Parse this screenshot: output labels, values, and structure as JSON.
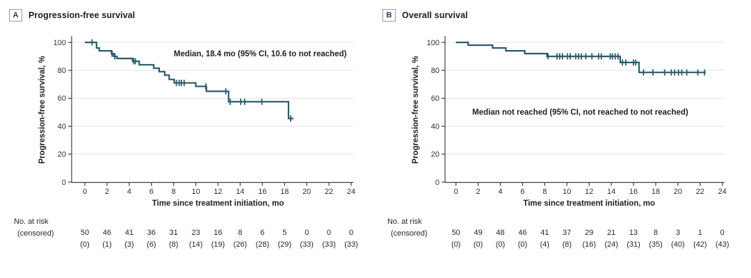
{
  "style": {
    "curve_color": "#2b5a6c",
    "grid_color": "#e4e4e4",
    "axis_color": "#3f3f3f",
    "tick_text_color": "#2e2e2e",
    "risk_text_color": "#262626",
    "annotation_color": "#1f1f1f",
    "panel_letter_color": "#1c3e63",
    "panel_label_box_border": "#9b9b9b",
    "background": "#ffffff"
  },
  "chart_data": [
    {
      "type": "line",
      "subtype": "kaplan-meier-step",
      "panel_label": "A",
      "title": "Progression-free survival",
      "annotation": "Median, 18.4 mo (95% CI, 10.6 to not reached)",
      "annotation_pos": {
        "t": 15.8,
        "s": 90
      },
      "xlabel": "Time since treatment initiation, mo",
      "ylabel": "Progression-free survival, %",
      "xlim": [
        0,
        24
      ],
      "ylim": [
        0,
        100
      ],
      "xticks": [
        0,
        2,
        4,
        6,
        8,
        10,
        12,
        14,
        16,
        18,
        20,
        22,
        24
      ],
      "yticks": [
        0,
        20,
        40,
        60,
        80,
        100
      ],
      "grid": "horizontal",
      "legend": "none",
      "steps": [
        [
          0,
          100
        ],
        [
          1.05,
          96
        ],
        [
          1.3,
          94
        ],
        [
          2.4,
          92
        ],
        [
          2.6,
          90
        ],
        [
          2.9,
          88.5
        ],
        [
          4.3,
          86.5
        ],
        [
          4.9,
          84
        ],
        [
          6.2,
          81.5
        ],
        [
          6.7,
          79
        ],
        [
          7.2,
          76.5
        ],
        [
          7.6,
          73.5
        ],
        [
          8.05,
          71
        ],
        [
          10.0,
          68.5
        ],
        [
          10.95,
          65
        ],
        [
          12.95,
          57.5
        ],
        [
          18.35,
          45.5
        ]
      ],
      "end_time": 18.8,
      "censor_marks": [
        [
          0.65,
          100
        ],
        [
          2.45,
          92
        ],
        [
          2.7,
          90
        ],
        [
          4.4,
          86.5
        ],
        [
          4.55,
          86.5
        ],
        [
          8.25,
          71
        ],
        [
          8.5,
          71
        ],
        [
          8.7,
          71
        ],
        [
          8.95,
          71
        ],
        [
          10.9,
          68.5
        ],
        [
          12.7,
          65
        ],
        [
          13.1,
          57.5
        ],
        [
          14.05,
          57.5
        ],
        [
          14.4,
          57.5
        ],
        [
          15.95,
          57.5
        ],
        [
          18.55,
          45.5
        ]
      ],
      "risk_table": {
        "label_line1": "No. at risk",
        "label_line2": "(censored)",
        "times": [
          0,
          2,
          4,
          6,
          8,
          10,
          12,
          14,
          16,
          18,
          20,
          22,
          24
        ],
        "at_risk": [
          50,
          46,
          41,
          36,
          31,
          23,
          16,
          8,
          6,
          5,
          0,
          0,
          0
        ],
        "censored": [
          0,
          1,
          3,
          6,
          8,
          14,
          19,
          26,
          28,
          29,
          33,
          33,
          33
        ]
      }
    },
    {
      "type": "line",
      "subtype": "kaplan-meier-step",
      "panel_label": "B",
      "title": "Overall survival",
      "annotation": "Median not reached (95% CI, not reached to not reached)",
      "annotation_pos": {
        "t": 11.2,
        "s": 48.3
      },
      "xlabel": "Time since treatment initiation, mo",
      "ylabel": "Progression-free survival, %",
      "xlim": [
        0,
        24
      ],
      "ylim": [
        0,
        100
      ],
      "xticks": [
        0,
        2,
        4,
        6,
        8,
        10,
        12,
        14,
        16,
        18,
        20,
        22,
        24
      ],
      "yticks": [
        0,
        20,
        40,
        60,
        80,
        100
      ],
      "grid": "horizontal",
      "legend": "none",
      "steps": [
        [
          0,
          100
        ],
        [
          1.1,
          98
        ],
        [
          3.3,
          96
        ],
        [
          4.5,
          94
        ],
        [
          6.2,
          92
        ],
        [
          8.2,
          90
        ],
        [
          14.8,
          85.6
        ],
        [
          16.5,
          78.5
        ]
      ],
      "end_time": 22.5,
      "censor_marks": [
        [
          8.3,
          90
        ],
        [
          9.1,
          90
        ],
        [
          9.35,
          90
        ],
        [
          9.6,
          90
        ],
        [
          10.05,
          90
        ],
        [
          10.3,
          90
        ],
        [
          10.8,
          90
        ],
        [
          11.05,
          90
        ],
        [
          11.3,
          90
        ],
        [
          11.7,
          90
        ],
        [
          12.25,
          90
        ],
        [
          12.85,
          90
        ],
        [
          13.1,
          90
        ],
        [
          13.9,
          90
        ],
        [
          14.1,
          90
        ],
        [
          14.35,
          90
        ],
        [
          14.6,
          90
        ],
        [
          15.0,
          85.6
        ],
        [
          15.3,
          85.6
        ],
        [
          16.0,
          85.6
        ],
        [
          16.2,
          85.6
        ],
        [
          16.9,
          78.5
        ],
        [
          17.75,
          78.5
        ],
        [
          18.8,
          78.5
        ],
        [
          19.4,
          78.5
        ],
        [
          19.7,
          78.5
        ],
        [
          20.05,
          78.5
        ],
        [
          20.35,
          78.5
        ],
        [
          20.8,
          78.5
        ],
        [
          21.8,
          78.5
        ],
        [
          22.4,
          78.5
        ]
      ],
      "risk_table": {
        "label_line1": "No. at risk",
        "label_line2": "(censored)",
        "times": [
          0,
          2,
          4,
          6,
          8,
          10,
          12,
          14,
          16,
          18,
          20,
          22,
          24
        ],
        "at_risk": [
          50,
          49,
          48,
          46,
          41,
          37,
          29,
          21,
          13,
          8,
          3,
          1,
          0
        ],
        "censored": [
          0,
          0,
          0,
          0,
          4,
          8,
          16,
          24,
          31,
          35,
          40,
          42,
          43
        ]
      }
    }
  ]
}
